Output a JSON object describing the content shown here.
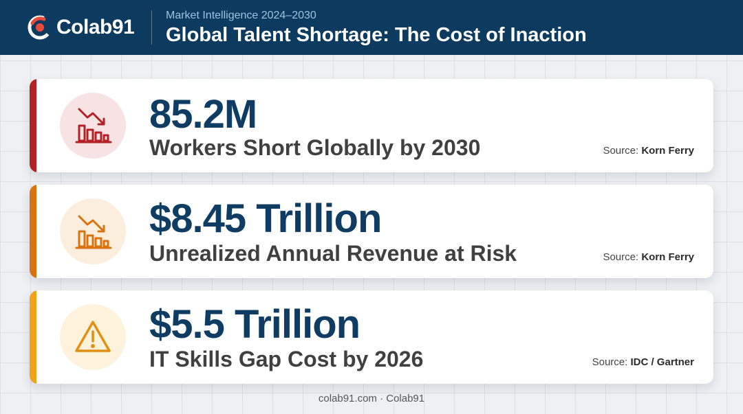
{
  "brand": {
    "name": "Colab91",
    "icon": "colab91-logo-icon"
  },
  "header": {
    "kicker": "Market Intelligence 2024–2030",
    "title": "Global Talent Shortage: The Cost of Inaction"
  },
  "source_prefix": "Source:",
  "cards": [
    {
      "value": "85.2M",
      "description": "Workers Short Globally by 2030",
      "source": "Korn Ferry",
      "icon": "declining-bar-chart-icon",
      "accent_color": "#b32025",
      "icon_bg": "#f7e3e3",
      "icon_color": "#b32025"
    },
    {
      "value": "$8.45 Trillion",
      "description": "Unrealized Annual Revenue at Risk",
      "source": "Korn Ferry",
      "icon": "declining-bar-chart-icon",
      "accent_color": "#d9730f",
      "icon_bg": "#fbeedd",
      "icon_color": "#d9730f"
    },
    {
      "value": "$5.5 Trillion",
      "description": "IT Skills Gap Cost by 2026",
      "source": "IDC / Gartner",
      "icon": "warning-triangle-icon",
      "accent_color": "#efa21a",
      "icon_bg": "#fdf2dc",
      "icon_color": "#e3900f"
    }
  ],
  "footer": "colab91.com · Colab91",
  "colors": {
    "header_bg": "#0d3a5f",
    "value_text": "#0f3c63"
  }
}
